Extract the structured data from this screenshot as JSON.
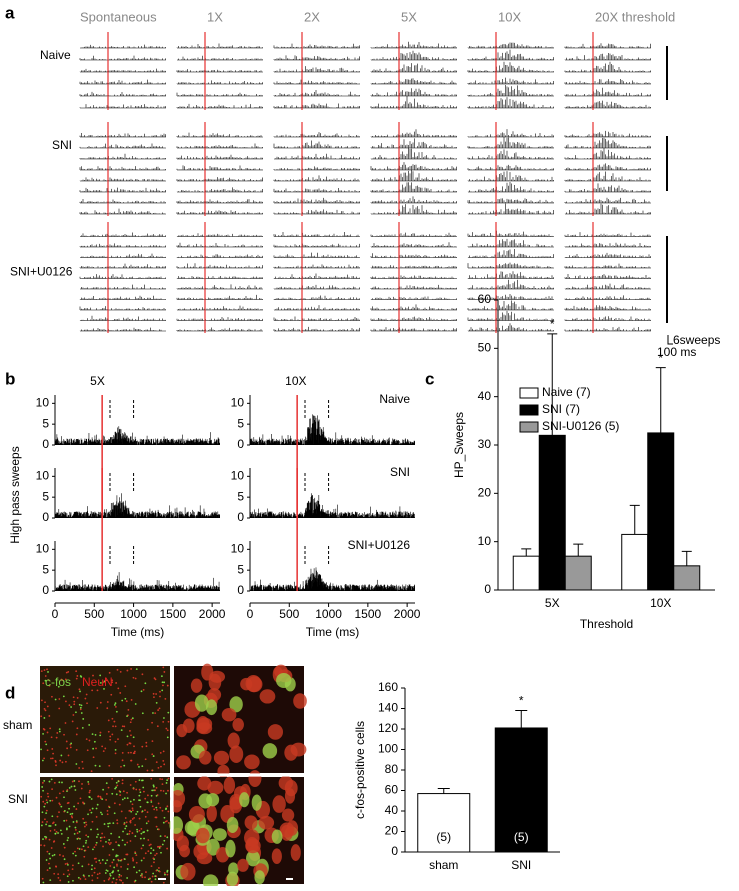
{
  "panel_labels": [
    "a",
    "b",
    "c",
    "d"
  ],
  "panel_a": {
    "columns": [
      "Spontaneous",
      "1X",
      "2X",
      "5X",
      "10X",
      "20X threshold"
    ],
    "rows": [
      "Naive",
      "SNI",
      "SNI+U0126"
    ],
    "scale_labels": [
      "6sweeps",
      "100 ms"
    ]
  },
  "panel_d_image": {
    "stains": [
      {
        "text": "c-fos",
        "color": "#7ed34a"
      },
      {
        "text": "NeuN",
        "color": "#e02020"
      }
    ],
    "rows": [
      "sham",
      "SNI"
    ]
  },
  "chart_data": [
    {
      "type": "trace",
      "title": "5X",
      "ylabel": "High pass sweeps",
      "xlabel": "Time (ms)",
      "panels": [
        "Naive",
        "SNI",
        "SNI+U0126"
      ],
      "show_panel_labels": false,
      "xlim": [
        0,
        2100
      ],
      "xticks": [
        0,
        500,
        1000,
        1500,
        2000
      ],
      "ylim": [
        0,
        12
      ],
      "yticks": [
        0,
        5,
        10
      ],
      "stimulus_x": 600,
      "window_x": [
        700,
        1000
      ]
    },
    {
      "type": "trace",
      "title": "10X",
      "xlabel": "Time (ms)",
      "panels": [
        "Naive",
        "SNI",
        "SNI+U0126"
      ],
      "show_panel_labels": true,
      "xlim": [
        0,
        2100
      ],
      "xticks": [
        0,
        500,
        1000,
        1500,
        2000
      ],
      "ylim": [
        0,
        12
      ],
      "yticks": [
        0,
        5,
        10
      ],
      "stimulus_x": 600,
      "window_x": [
        700,
        1000
      ]
    },
    {
      "type": "bar",
      "ylabel": "HP_Sweeps",
      "xlabel": "Threshold",
      "categories": [
        "5X",
        "10X"
      ],
      "ylim": [
        0,
        60
      ],
      "yticks": [
        0,
        10,
        20,
        30,
        40,
        50,
        60
      ],
      "series": [
        {
          "name": "Naive (7)",
          "color": "#ffffff",
          "values": [
            7,
            11.5
          ],
          "errors": [
            1.5,
            6
          ]
        },
        {
          "name": "SNI (7)",
          "color": "#000000",
          "values": [
            32,
            32.5
          ],
          "errors": [
            21,
            13.5
          ]
        },
        {
          "name": "SNI-U0126 (5)",
          "color": "#999999",
          "values": [
            7,
            5
          ],
          "errors": [
            2.5,
            3
          ]
        }
      ],
      "annotations": [
        "*",
        "*"
      ]
    },
    {
      "type": "bar",
      "ylabel": "c-fos-positive cells",
      "categories": [
        "sham",
        "SNI"
      ],
      "values": [
        57,
        121
      ],
      "errors": [
        5,
        17
      ],
      "colors": [
        "#ffffff",
        "#000000"
      ],
      "n_labels": [
        "(5)",
        "(5)"
      ],
      "annotations": [
        "*"
      ],
      "ylim": [
        0,
        160
      ],
      "yticks": [
        0,
        20,
        40,
        60,
        80,
        100,
        120,
        140,
        160
      ]
    }
  ]
}
